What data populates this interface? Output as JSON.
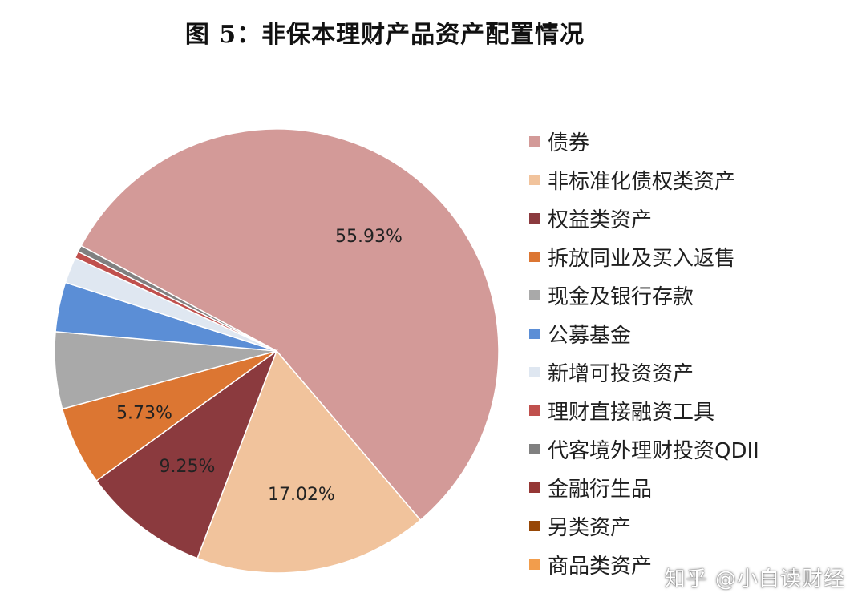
{
  "chart_data": {
    "type": "pie",
    "title": "图 5：非保本理财产品资产配置情况",
    "legend_position": "right",
    "slices": [
      {
        "name": "债券",
        "value": 55.93,
        "label": "55.93%",
        "color": "#d39a98"
      },
      {
        "name": "非标准化债权类资产",
        "value": 17.02,
        "label": "17.02%",
        "color": "#f1c39c"
      },
      {
        "name": "权益类资产",
        "value": 9.25,
        "label": "9.25%",
        "color": "#8b3a3e"
      },
      {
        "name": "拆放同业及买入返售",
        "value": 5.73,
        "label": "5.73%",
        "color": "#dc7632"
      },
      {
        "name": "现金及银行存款",
        "value": 5.6,
        "label": "",
        "color": "#a9a9a9"
      },
      {
        "name": "公募基金",
        "value": 3.6,
        "label": "",
        "color": "#5b8ed6"
      },
      {
        "name": "新增可投资资产",
        "value": 1.9,
        "label": "",
        "color": "#dfe7f1"
      },
      {
        "name": "理财直接融资工具",
        "value": 0.5,
        "label": "",
        "color": "#c0504d"
      },
      {
        "name": "代客境外理财投资QDII",
        "value": 0.47,
        "label": "",
        "color": "#808080"
      },
      {
        "name": "金融衍生品",
        "value": 0,
        "label": "",
        "color": "#953735"
      },
      {
        "name": "另类资产",
        "value": 0,
        "label": "",
        "color": "#974706"
      },
      {
        "name": "商品类资产",
        "value": 0,
        "label": "",
        "color": "#f29d4c"
      }
    ]
  },
  "watermark": "知乎 @小白读财经"
}
